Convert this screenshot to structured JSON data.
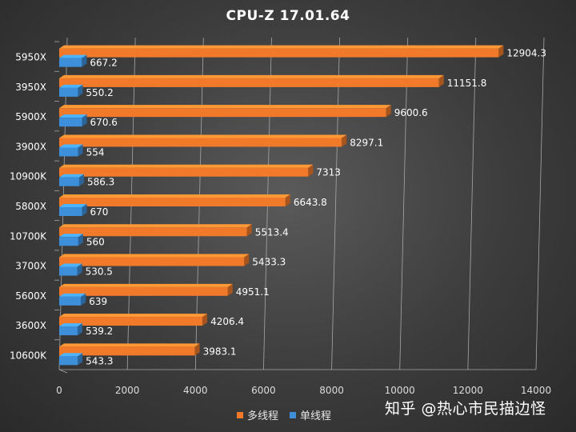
{
  "chart_data": {
    "type": "bar",
    "orientation": "horizontal",
    "title": "CPU-Z  17.01.64",
    "categories": [
      "5950X",
      "3950X",
      "5900X",
      "3900X",
      "10900K",
      "5800X",
      "10700K",
      "3700X",
      "5600X",
      "3600X",
      "10600K"
    ],
    "series": [
      {
        "name": "多线程",
        "color": "#f07a2a",
        "values": [
          12904.3,
          11151.8,
          9600.6,
          8297.1,
          7313,
          6643.8,
          5513.4,
          5433.3,
          4951.1,
          4206.4,
          3983.1
        ],
        "labels": [
          "12904.3",
          "11151.8",
          "9600.6",
          "8297.1",
          "7313",
          "6643.8",
          "5513.4",
          "5433.3",
          "4951.1",
          "4206.4",
          "3983.1"
        ]
      },
      {
        "name": "单线程",
        "color": "#3d8fd9",
        "values": [
          667.2,
          550.2,
          670.6,
          554,
          586.3,
          670,
          560,
          530.5,
          639,
          539.2,
          543.3
        ],
        "labels": [
          "667.2",
          "550.2",
          "670.6",
          "554",
          "586.3",
          "670",
          "560",
          "530.5",
          "639",
          "539.2",
          "543.3"
        ]
      }
    ],
    "xlim": [
      0,
      14000
    ],
    "xticks": [
      0,
      2000,
      4000,
      6000,
      8000,
      10000,
      12000,
      14000
    ],
    "xtick_labels": [
      "0",
      "2000",
      "4000",
      "6000",
      "8000",
      "10000",
      "12000",
      "14000"
    ],
    "grid": true,
    "legend_position": "bottom"
  },
  "watermark": "知乎 @热心市民描边怪"
}
